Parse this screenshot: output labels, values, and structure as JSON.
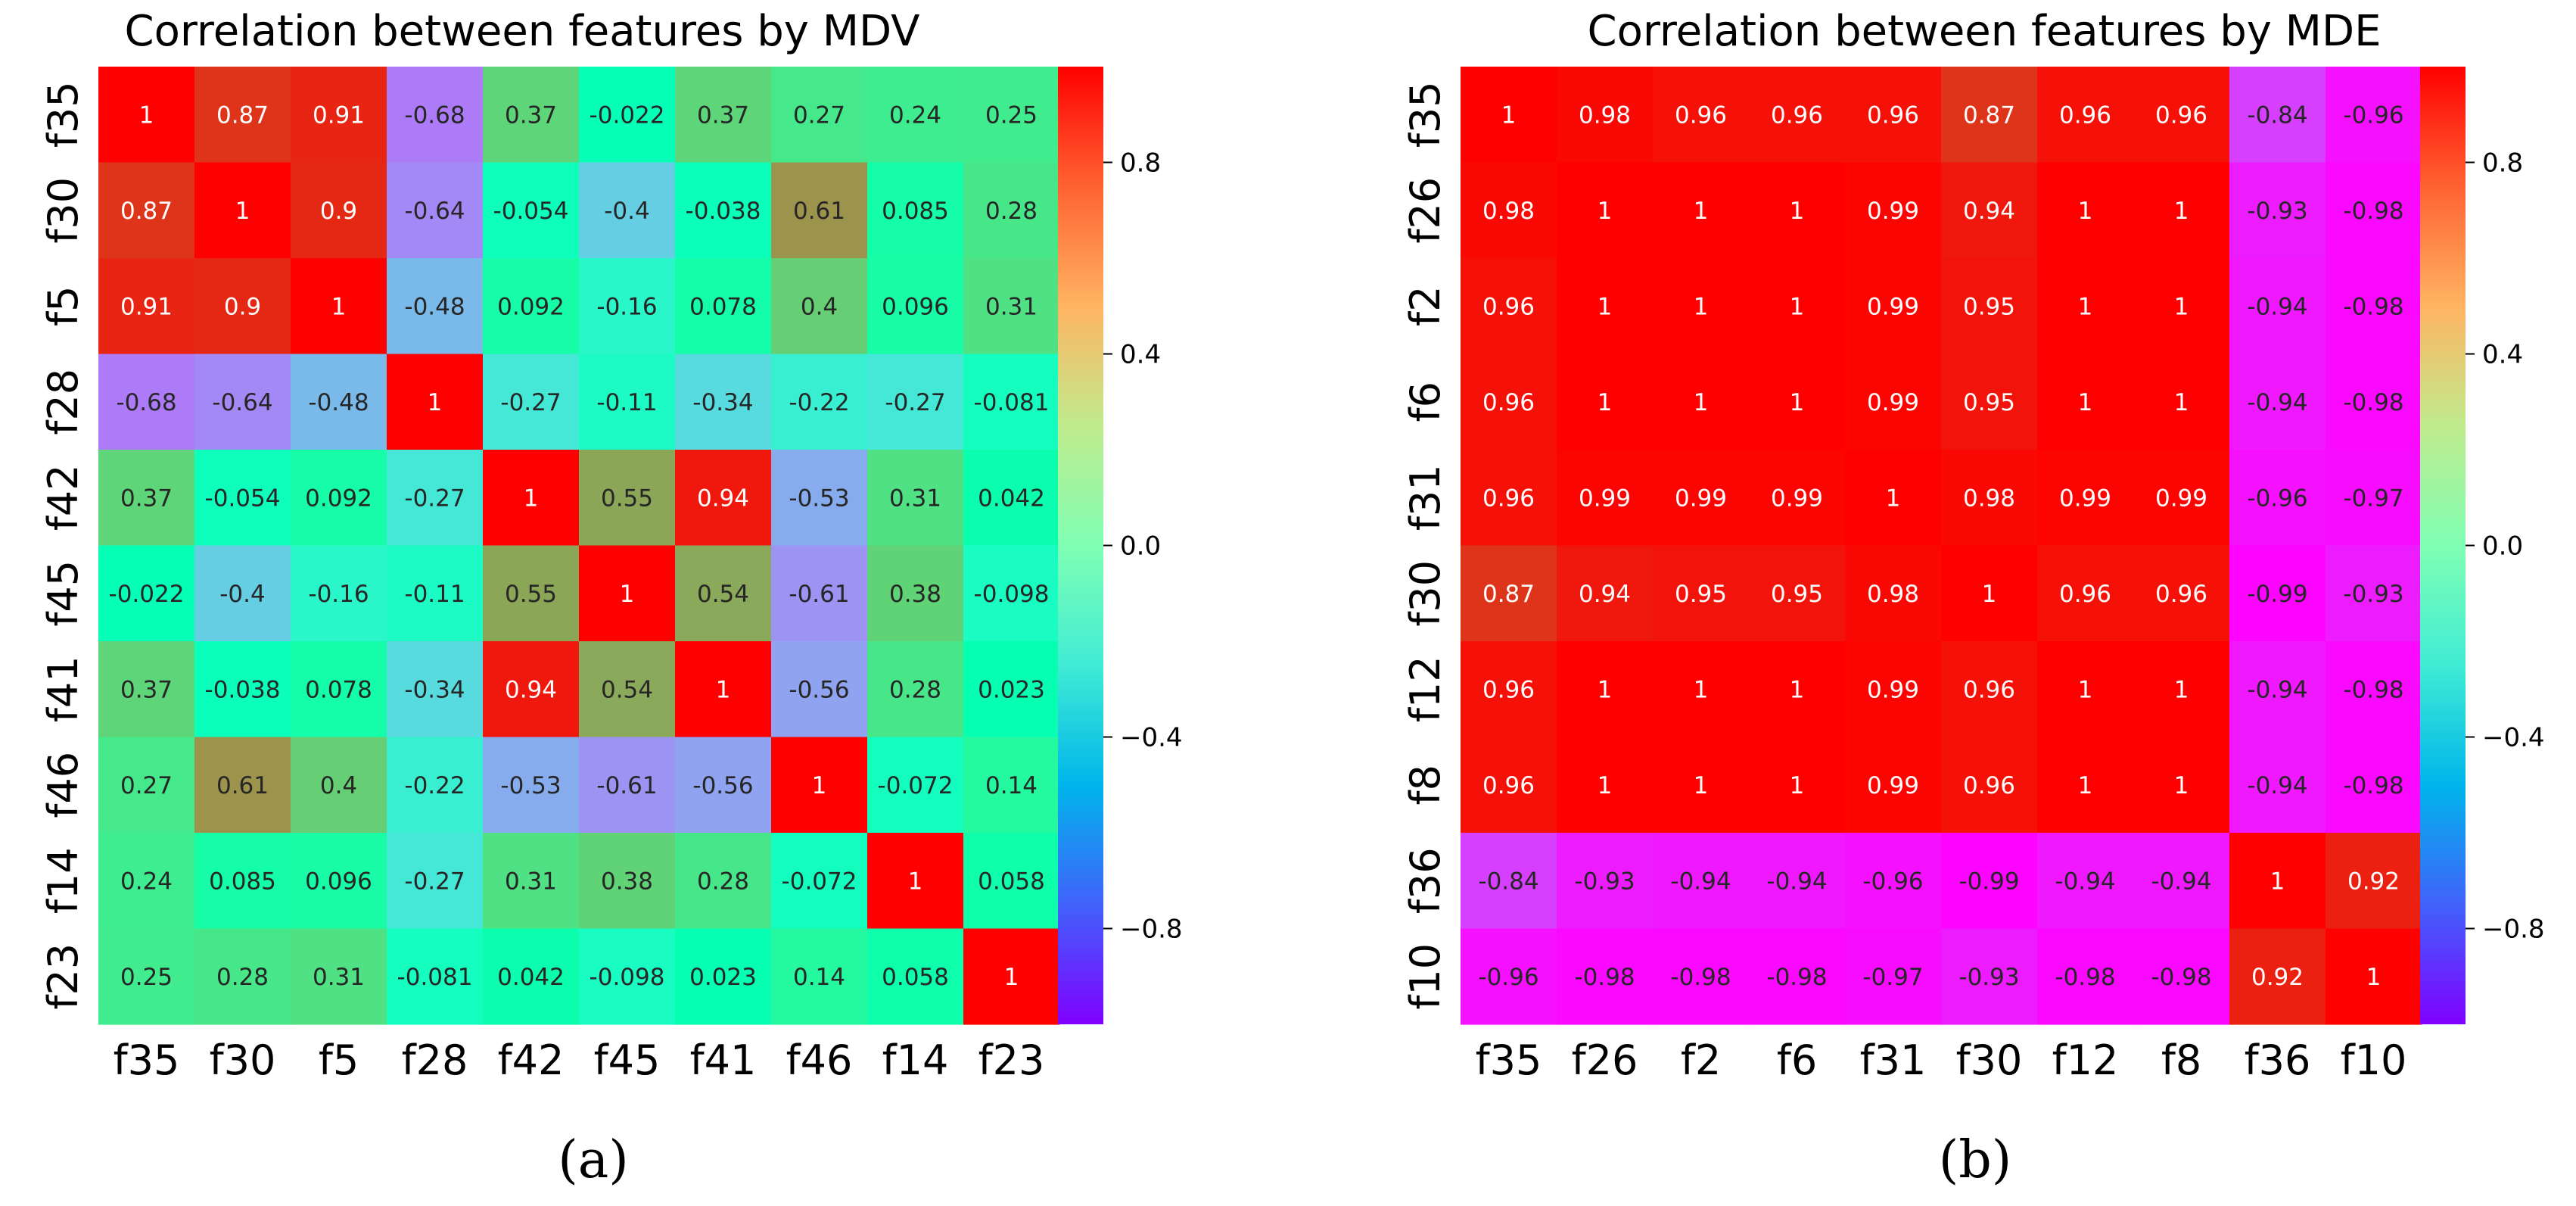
{
  "panel_labels": [
    "(a)",
    "(b)"
  ],
  "chart_data": [
    {
      "type": "heatmap",
      "title": "Correlation between features by MDV",
      "xlabel": "",
      "ylabel": "",
      "x_labels": [
        "f35",
        "f30",
        "f5",
        "f28",
        "f42",
        "f45",
        "f41",
        "f46",
        "f14",
        "f23"
      ],
      "y_labels": [
        "f35",
        "f30",
        "f5",
        "f28",
        "f42",
        "f45",
        "f41",
        "f46",
        "f14",
        "f23"
      ],
      "values": [
        [
          1,
          0.87,
          0.91,
          -0.68,
          0.37,
          -0.022,
          0.37,
          0.27,
          0.24,
          0.25
        ],
        [
          0.87,
          1,
          0.9,
          -0.64,
          -0.054,
          -0.4,
          -0.038,
          0.61,
          0.085,
          0.28
        ],
        [
          0.91,
          0.9,
          1,
          -0.48,
          0.092,
          -0.16,
          0.078,
          0.4,
          0.096,
          0.31
        ],
        [
          -0.68,
          -0.64,
          -0.48,
          1,
          -0.27,
          -0.11,
          -0.34,
          -0.22,
          -0.27,
          -0.081
        ],
        [
          0.37,
          -0.054,
          0.092,
          -0.27,
          1,
          0.55,
          0.94,
          -0.53,
          0.31,
          0.042
        ],
        [
          -0.022,
          -0.4,
          -0.16,
          -0.11,
          0.55,
          1,
          0.54,
          -0.61,
          0.38,
          -0.098
        ],
        [
          0.37,
          -0.038,
          0.078,
          -0.34,
          0.94,
          0.54,
          1,
          -0.56,
          0.28,
          0.023
        ],
        [
          0.27,
          0.61,
          0.4,
          -0.22,
          -0.53,
          -0.61,
          -0.56,
          1,
          -0.072,
          0.14
        ],
        [
          0.24,
          0.085,
          0.096,
          -0.27,
          0.31,
          0.38,
          0.28,
          -0.072,
          1,
          0.058
        ],
        [
          0.25,
          0.28,
          0.31,
          -0.081,
          0.042,
          -0.098,
          0.023,
          0.14,
          0.058,
          1
        ]
      ],
      "labels": [
        [
          "1",
          "0.87",
          "0.91",
          "-0.68",
          "0.37",
          "-0.022",
          "0.37",
          "0.27",
          "0.24",
          "0.25"
        ],
        [
          "0.87",
          "1",
          "0.9",
          "-0.64",
          "-0.054",
          "-0.4",
          "-0.038",
          "0.61",
          "0.085",
          "0.28"
        ],
        [
          "0.91",
          "0.9",
          "1",
          "-0.48",
          "0.092",
          "-0.16",
          "0.078",
          "0.4",
          "0.096",
          "0.31"
        ],
        [
          "-0.68",
          "-0.64",
          "-0.48",
          "1",
          "-0.27",
          "-0.11",
          "-0.34",
          "-0.22",
          "-0.27",
          "-0.081"
        ],
        [
          "0.37",
          "-0.054",
          "0.092",
          "-0.27",
          "1",
          "0.55",
          "0.94",
          "-0.53",
          "0.31",
          "0.042"
        ],
        [
          "-0.022",
          "-0.4",
          "-0.16",
          "-0.11",
          "0.55",
          "1",
          "0.54",
          "-0.61",
          "0.38",
          "-0.098"
        ],
        [
          "0.37",
          "-0.038",
          "0.078",
          "-0.34",
          "0.94",
          "0.54",
          "1",
          "-0.56",
          "0.28",
          "0.023"
        ],
        [
          "0.27",
          "0.61",
          "0.4",
          "-0.22",
          "-0.53",
          "-0.61",
          "-0.56",
          "1",
          "-0.072",
          "0.14"
        ],
        [
          "0.24",
          "0.085",
          "0.096",
          "-0.27",
          "0.31",
          "0.38",
          "0.28",
          "-0.072",
          "1",
          "0.058"
        ],
        [
          "0.25",
          "0.28",
          "0.31",
          "-0.081",
          "0.042",
          "-0.098",
          "0.023",
          "0.14",
          "0.058",
          "1"
        ]
      ],
      "colormap": "rainbow",
      "vmin": -1,
      "vmax": 1,
      "colorbar_ticks": [
        0.8,
        0.4,
        0.0,
        -0.4,
        -0.8
      ],
      "colorbar_tick_labels": [
        "0.8",
        "0.4",
        "0.0",
        "−0.4",
        "−0.8"
      ]
    },
    {
      "type": "heatmap",
      "title": "Correlation between features by MDE",
      "xlabel": "",
      "ylabel": "",
      "x_labels": [
        "f35",
        "f26",
        "f2",
        "f6",
        "f31",
        "f30",
        "f12",
        "f8",
        "f36",
        "f10"
      ],
      "y_labels": [
        "f35",
        "f26",
        "f2",
        "f6",
        "f31",
        "f30",
        "f12",
        "f8",
        "f36",
        "f10"
      ],
      "values": [
        [
          1,
          0.98,
          0.96,
          0.96,
          0.96,
          0.87,
          0.96,
          0.96,
          -0.84,
          -0.96
        ],
        [
          0.98,
          1,
          1,
          1,
          0.99,
          0.94,
          1,
          1,
          -0.93,
          -0.98
        ],
        [
          0.96,
          1,
          1,
          1,
          0.99,
          0.95,
          1,
          1,
          -0.94,
          -0.98
        ],
        [
          0.96,
          1,
          1,
          1,
          0.99,
          0.95,
          1,
          1,
          -0.94,
          -0.98
        ],
        [
          0.96,
          0.99,
          0.99,
          0.99,
          1,
          0.98,
          0.99,
          0.99,
          -0.96,
          -0.97
        ],
        [
          0.87,
          0.94,
          0.95,
          0.95,
          0.98,
          1,
          0.96,
          0.96,
          -0.99,
          -0.93
        ],
        [
          0.96,
          1,
          1,
          1,
          0.99,
          0.96,
          1,
          1,
          -0.94,
          -0.98
        ],
        [
          0.96,
          1,
          1,
          1,
          0.99,
          0.96,
          1,
          1,
          -0.94,
          -0.98
        ],
        [
          -0.84,
          -0.93,
          -0.94,
          -0.94,
          -0.96,
          -0.99,
          -0.94,
          -0.94,
          1,
          0.92
        ],
        [
          -0.96,
          -0.98,
          -0.98,
          -0.98,
          -0.97,
          -0.93,
          -0.98,
          -0.98,
          0.92,
          1
        ]
      ],
      "labels": [
        [
          "1",
          "0.98",
          "0.96",
          "0.96",
          "0.96",
          "0.87",
          "0.96",
          "0.96",
          "-0.84",
          "-0.96"
        ],
        [
          "0.98",
          "1",
          "1",
          "1",
          "0.99",
          "0.94",
          "1",
          "1",
          "-0.93",
          "-0.98"
        ],
        [
          "0.96",
          "1",
          "1",
          "1",
          "0.99",
          "0.95",
          "1",
          "1",
          "-0.94",
          "-0.98"
        ],
        [
          "0.96",
          "1",
          "1",
          "1",
          "0.99",
          "0.95",
          "1",
          "1",
          "-0.94",
          "-0.98"
        ],
        [
          "0.96",
          "0.99",
          "0.99",
          "0.99",
          "1",
          "0.98",
          "0.99",
          "0.99",
          "-0.96",
          "-0.97"
        ],
        [
          "0.87",
          "0.94",
          "0.95",
          "0.95",
          "0.98",
          "1",
          "0.96",
          "0.96",
          "-0.99",
          "-0.93"
        ],
        [
          "0.96",
          "1",
          "1",
          "1",
          "0.99",
          "0.96",
          "1",
          "1",
          "-0.94",
          "-0.98"
        ],
        [
          "0.96",
          "1",
          "1",
          "1",
          "0.99",
          "0.96",
          "1",
          "1",
          "-0.94",
          "-0.98"
        ],
        [
          "-0.84",
          "-0.93",
          "-0.94",
          "-0.94",
          "-0.96",
          "-0.99",
          "-0.94",
          "-0.94",
          "1",
          "0.92"
        ],
        [
          "-0.96",
          "-0.98",
          "-0.98",
          "-0.98",
          "-0.97",
          "-0.93",
          "-0.98",
          "-0.98",
          "0.92",
          "1"
        ]
      ],
      "colormap": "rainbow",
      "vmin": -1,
      "vmax": 1,
      "colorbar_ticks": [
        0.8,
        0.4,
        0.0,
        -0.4,
        -0.8
      ],
      "colorbar_tick_labels": [
        "0.8",
        "0.4",
        "0.0",
        "−0.4",
        "−0.8"
      ]
    }
  ]
}
